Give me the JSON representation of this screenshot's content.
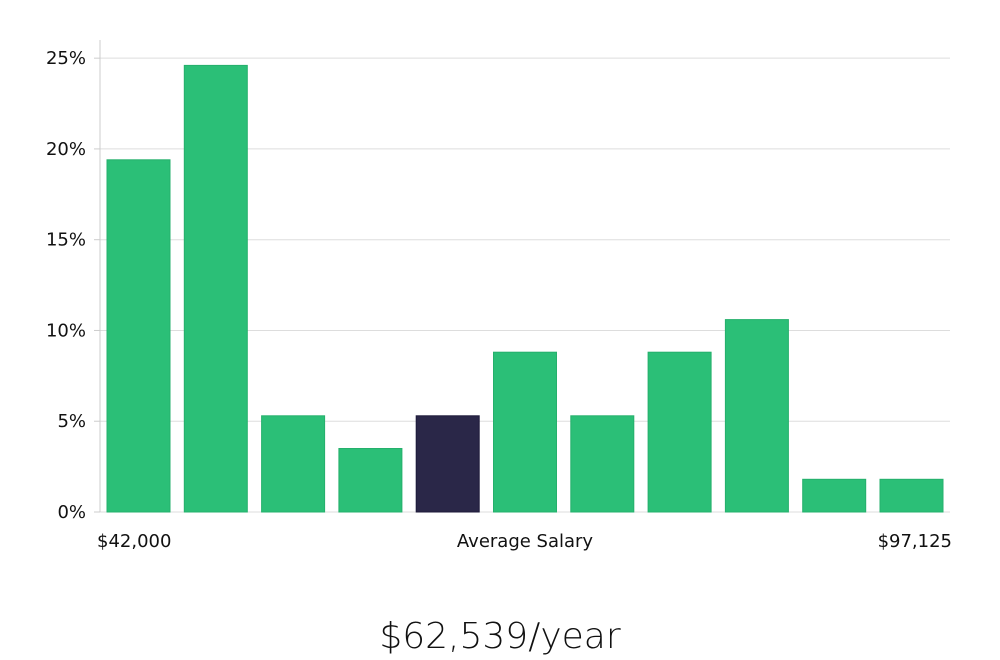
{
  "chart_data": {
    "type": "bar",
    "title": "",
    "xlabel": "Average Salary",
    "ylabel": "",
    "ylim": [
      0,
      26
    ],
    "yticks": [
      0,
      5,
      10,
      15,
      20,
      25
    ],
    "ytick_labels": [
      "0%",
      "5%",
      "10%",
      "15%",
      "20%",
      "25%"
    ],
    "x_range_labels": {
      "min": "$42,000",
      "max": "$97,125"
    },
    "values": [
      19.4,
      24.6,
      5.3,
      3.5,
      5.3,
      8.8,
      5.3,
      8.8,
      10.6,
      1.8,
      1.8
    ],
    "highlight_index": 4,
    "colors": {
      "bar": "#2bbf77",
      "highlight": "#2a2748",
      "grid": "#dddddd",
      "axis": "#cccccc"
    }
  },
  "summary": {
    "value": "$62,539/year"
  }
}
